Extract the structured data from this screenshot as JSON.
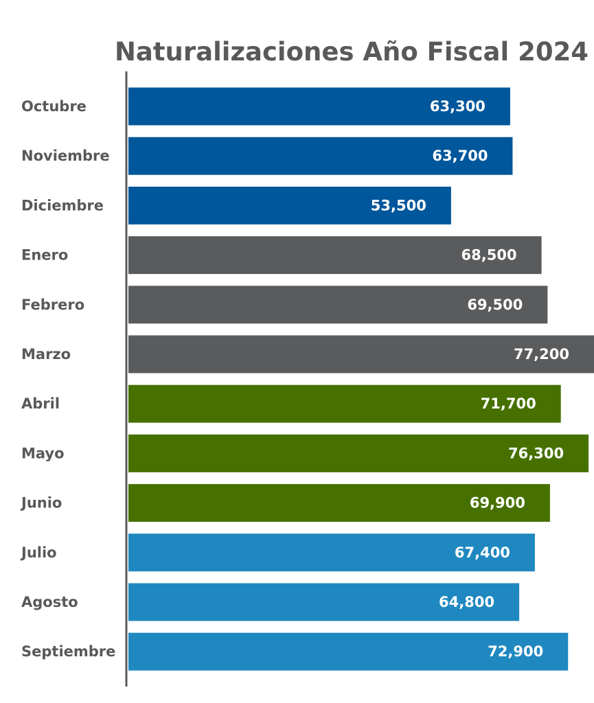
{
  "chart_data": {
    "type": "bar",
    "orientation": "horizontal",
    "title": "Naturalizaciones Año Fiscal 2024",
    "categories": [
      "Octubre",
      "Noviembre",
      "Diciembre",
      "Enero",
      "Febrero",
      "Marzo",
      "Abril",
      "Mayo",
      "Junio",
      "Julio",
      "Agosto",
      "Septiembre"
    ],
    "values": [
      63300,
      63700,
      53500,
      68500,
      69500,
      77200,
      71700,
      76300,
      69900,
      67400,
      64800,
      72900
    ],
    "value_labels": [
      "63,300",
      "63,700",
      "53,500",
      "68,500",
      "69,500",
      "77,200",
      "71,700",
      "76,300",
      "69,900",
      "67,400",
      "64,800",
      "72,900"
    ],
    "bar_colors": [
      "#01579b",
      "#01579b",
      "#01579b",
      "#5a5b5d",
      "#5a5b5d",
      "#5a5b5d",
      "#467100",
      "#467100",
      "#467100",
      "#1f88c0",
      "#1f88c0",
      "#1f88c0"
    ],
    "xlim": [
      0,
      77200
    ],
    "grid": false,
    "legend": "none"
  }
}
